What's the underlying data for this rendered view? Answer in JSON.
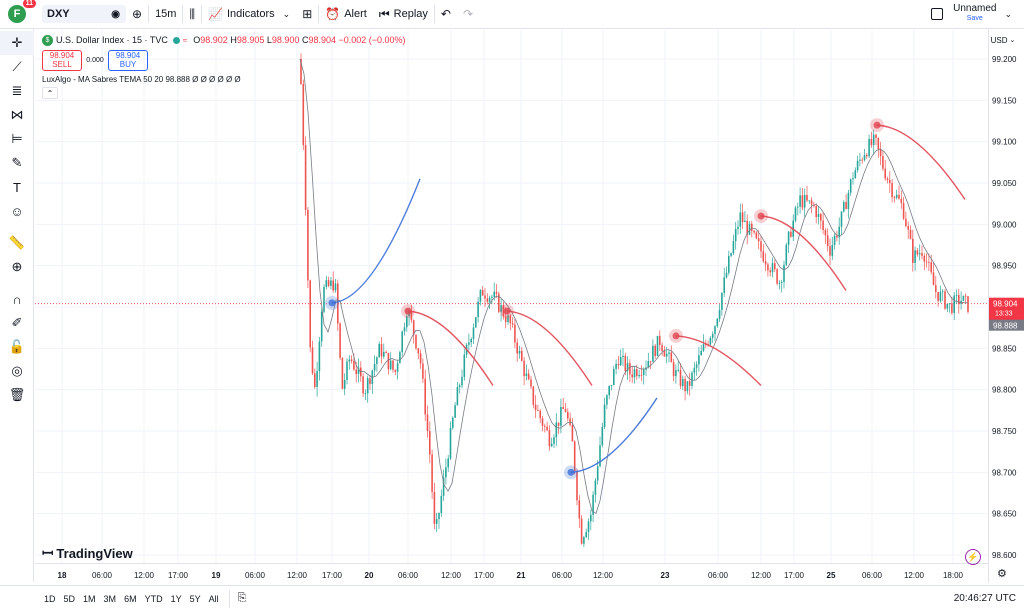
{
  "topbar": {
    "avatar_letter": "F",
    "notification_count": "11",
    "symbol": "DXY",
    "timeframe": "15m",
    "indicators_label": "Indicators",
    "alert_label": "Alert",
    "replay_label": "Replay",
    "layout_name": "Unnamed",
    "save_label": "Save"
  },
  "legend": {
    "title": "U.S. Dollar Index · 15 · TVC",
    "o_label": "O",
    "o_value": "98.902",
    "h_label": "H",
    "h_value": "98.905",
    "l_label": "L",
    "l_value": "98.900",
    "c_label": "C",
    "c_value": "98.904",
    "change": "−0.002 (−0.00%)",
    "sell_price": "98.904",
    "sell_label": "SELL",
    "spread": "0.000",
    "buy_price": "98.904",
    "buy_label": "BUY",
    "indicator": "LuxAlgo - MA Sabres TEMA 50 20  98.888  Ø  Ø  Ø  Ø  Ø  Ø"
  },
  "price_axis": {
    "currency": "USD",
    "ticks": [
      "99.200",
      "99.150",
      "99.100",
      "99.050",
      "99.000",
      "98.950",
      "98.900",
      "98.850",
      "98.800",
      "98.750",
      "98.700",
      "98.650",
      "98.600"
    ],
    "last_price": "98.904",
    "countdown": "13:33",
    "indicator_value": "98.888"
  },
  "time_axis": {
    "ticks": [
      "18",
      "06:00",
      "12:00",
      "17:00",
      "19",
      "06:00",
      "12:00",
      "17:00",
      "20",
      "06:00",
      "12:00",
      "17:00",
      "21",
      "06:00",
      "12:00",
      "23",
      "06:00",
      "12:00",
      "17:00",
      "25",
      "06:00",
      "12:00",
      "18:00"
    ]
  },
  "bottombar": {
    "ranges": [
      "1D",
      "5D",
      "1M",
      "3M",
      "6M",
      "YTD",
      "1Y",
      "5Y",
      "All"
    ],
    "clock": "20:46:27 UTC"
  },
  "watermark": "TradingView",
  "colors": {
    "up": "#26a69a",
    "down": "#ef5350",
    "bear_sabre": "#e0434f",
    "bull_sabre": "#3a6fd8",
    "accent": "#2962ff"
  },
  "icons": {
    "left_tools": [
      "crosshair-icon",
      "trendline-icon",
      "fib-icon",
      "pattern-icon",
      "position-icon",
      "brush-icon",
      "text-icon",
      "emoji-icon",
      "ruler-icon",
      "zoom-icon",
      "magnet-icon",
      "lock-drawing-icon",
      "unlock-icon",
      "eye-icon",
      "trash-icon"
    ]
  }
}
